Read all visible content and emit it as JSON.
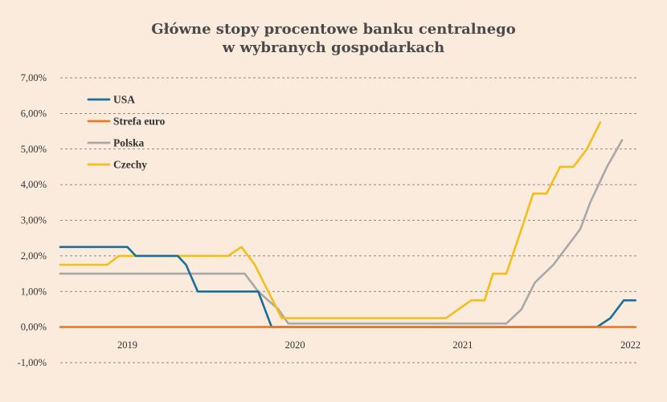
{
  "chart_data": {
    "type": "line",
    "title_lines": [
      "Główne stopy procentowe banku centralnego",
      "w wybranych gospodarkach"
    ],
    "xlabel": "",
    "ylabel": "",
    "ylim": [
      -1,
      7
    ],
    "yticks": [
      {
        "value": 7,
        "label": "7,00%"
      },
      {
        "value": 6,
        "label": "6,00%"
      },
      {
        "value": 5,
        "label": "5,00%"
      },
      {
        "value": 4,
        "label": "4,00%"
      },
      {
        "value": 3,
        "label": "3,00%"
      },
      {
        "value": 2,
        "label": "2,00%"
      },
      {
        "value": 1,
        "label": "1,00%"
      },
      {
        "value": 0,
        "label": "0,00%"
      },
      {
        "value": -1,
        "label": "-1,00%"
      }
    ],
    "xlim": [
      2018.6,
      2022.05
    ],
    "xticks": [
      {
        "value": 2019,
        "label": "2019"
      },
      {
        "value": 2020,
        "label": "2020"
      },
      {
        "value": 2021,
        "label": "2021"
      },
      {
        "value": 2022,
        "label": "2022"
      }
    ],
    "grid": true,
    "legend_position": "top-left",
    "series": [
      {
        "name": "USA",
        "color": "#1a6f9a",
        "points": [
          [
            2018.6,
            2.25
          ],
          [
            2019.0,
            2.25
          ],
          [
            2019.05,
            2.0
          ],
          [
            2019.3,
            2.0
          ],
          [
            2019.35,
            1.75
          ],
          [
            2019.42,
            1.0
          ],
          [
            2019.78,
            1.0
          ],
          [
            2019.86,
            0.0
          ],
          [
            2021.8,
            0.0
          ],
          [
            2021.88,
            0.25
          ],
          [
            2021.96,
            0.75
          ],
          [
            2022.03,
            0.75
          ]
        ]
      },
      {
        "name": "Strefa euro",
        "color": "#e8782a",
        "points": [
          [
            2018.6,
            0.0
          ],
          [
            2022.03,
            0.0
          ]
        ]
      },
      {
        "name": "Polska",
        "color": "#a8a8a8",
        "points": [
          [
            2018.6,
            1.5
          ],
          [
            2019.7,
            1.5
          ],
          [
            2019.78,
            1.0
          ],
          [
            2019.9,
            0.5
          ],
          [
            2019.96,
            0.1
          ],
          [
            2021.26,
            0.1
          ],
          [
            2021.35,
            0.5
          ],
          [
            2021.43,
            1.25
          ],
          [
            2021.54,
            1.75
          ],
          [
            2021.62,
            2.25
          ],
          [
            2021.7,
            2.75
          ],
          [
            2021.76,
            3.5
          ],
          [
            2021.86,
            4.5
          ],
          [
            2021.95,
            5.25
          ]
        ]
      },
      {
        "name": "Czechy",
        "color": "#f3be19",
        "points": [
          [
            2018.6,
            1.75
          ],
          [
            2018.88,
            1.75
          ],
          [
            2018.95,
            2.0
          ],
          [
            2019.6,
            2.0
          ],
          [
            2019.68,
            2.25
          ],
          [
            2019.76,
            1.75
          ],
          [
            2019.84,
            1.0
          ],
          [
            2019.92,
            0.25
          ],
          [
            2020.9,
            0.25
          ],
          [
            2021.05,
            0.75
          ],
          [
            2021.13,
            0.75
          ],
          [
            2021.18,
            1.5
          ],
          [
            2021.26,
            1.5
          ],
          [
            2021.35,
            2.75
          ],
          [
            2021.42,
            3.75
          ],
          [
            2021.5,
            3.75
          ],
          [
            2021.58,
            4.5
          ],
          [
            2021.66,
            4.5
          ],
          [
            2021.74,
            5.0
          ],
          [
            2021.82,
            5.75
          ]
        ]
      }
    ]
  }
}
